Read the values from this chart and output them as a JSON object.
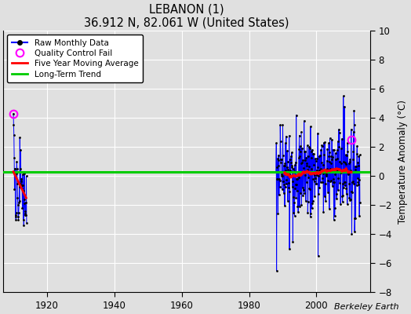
{
  "title": "LEBANON (1)",
  "subtitle": "36.912 N, 82.061 W (United States)",
  "ylabel": "Temperature Anomaly (°C)",
  "attribution": "Berkeley Earth",
  "xlim": [
    1907,
    2016
  ],
  "ylim": [
    -8,
    10
  ],
  "yticks": [
    -8,
    -6,
    -4,
    -2,
    0,
    2,
    4,
    6,
    8,
    10
  ],
  "xticks": [
    1920,
    1940,
    1960,
    1980,
    2000
  ],
  "bg_color": "#e0e0e0",
  "plot_bg": "#e0e0e0",
  "grid_color": "#ffffff",
  "raw_color": "#0000ff",
  "dot_color": "#000000",
  "qc_color": "#ff00ff",
  "ma_color": "#ff0000",
  "trend_color": "#00cc00",
  "trend_y": 0.3,
  "figsize": [
    5.24,
    4.0
  ],
  "dpi": 100
}
